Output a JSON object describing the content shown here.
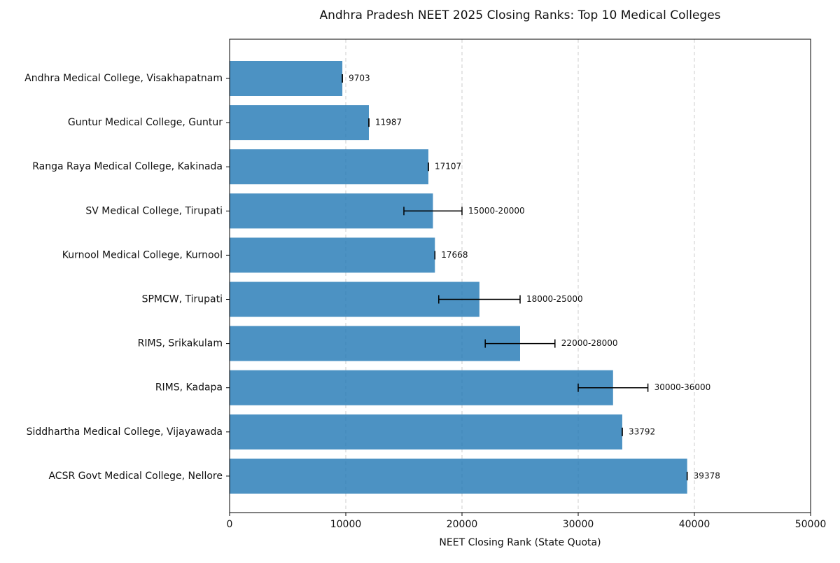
{
  "chart_data": {
    "type": "bar",
    "orientation": "horizontal",
    "title": "Andhra Pradesh NEET 2025 Closing Ranks: Top 10 Medical Colleges",
    "x_label": "NEET Closing Rank (State Quota)",
    "categories": [
      "Andhra Medical College, Visakhapatnam",
      "Guntur Medical College, Guntur",
      "Ranga Raya Medical College, Kakinada",
      "SV Medical College, Tirupati",
      "Kurnool Medical College, Kurnool",
      "SPMCW, Tirupati",
      "RIMS, Srikakulam",
      "RIMS, Kadapa",
      "Siddhartha Medical College, Vijayawada",
      "ACSR Govt Medical College, Nellore"
    ],
    "values": [
      9703,
      11987,
      17107,
      17500,
      17668,
      21500,
      25000,
      33000,
      33792,
      39378
    ],
    "errors": [
      0,
      0,
      0,
      2500,
      0,
      3500,
      3000,
      3000,
      0,
      0
    ],
    "value_labels": [
      "9703",
      "11987",
      "17107",
      "15000-20000",
      "17668",
      "18000-25000",
      "22000-28000",
      "30000-36000",
      "33792",
      "39378"
    ],
    "color": "#1f77b4",
    "xlim": [
      0,
      50000
    ],
    "xticks": [
      0,
      10000,
      20000,
      30000,
      40000,
      50000
    ],
    "grid": true
  }
}
